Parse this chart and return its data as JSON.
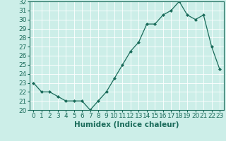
{
  "title": "",
  "xlabel": "Humidex (Indice chaleur)",
  "ylabel": "",
  "x_values": [
    0,
    1,
    2,
    3,
    4,
    5,
    6,
    7,
    8,
    9,
    10,
    11,
    12,
    13,
    14,
    15,
    16,
    17,
    18,
    19,
    20,
    21,
    22,
    23
  ],
  "y_values": [
    23.0,
    22.0,
    22.0,
    21.5,
    21.0,
    21.0,
    21.0,
    20.0,
    21.0,
    22.0,
    23.5,
    25.0,
    26.5,
    27.5,
    29.5,
    29.5,
    30.5,
    31.0,
    32.0,
    30.5,
    30.0,
    30.5,
    27.0,
    24.5
  ],
  "ylim": [
    20,
    32
  ],
  "xlim": [
    -0.5,
    23.5
  ],
  "yticks": [
    20,
    21,
    22,
    23,
    24,
    25,
    26,
    27,
    28,
    29,
    30,
    31,
    32
  ],
  "xticks": [
    0,
    1,
    2,
    3,
    4,
    5,
    6,
    7,
    8,
    9,
    10,
    11,
    12,
    13,
    14,
    15,
    16,
    17,
    18,
    19,
    20,
    21,
    22,
    23
  ],
  "line_color": "#1a6b5a",
  "marker": "D",
  "marker_size": 2.0,
  "bg_color": "#cceee8",
  "grid_color": "#aaddcc",
  "tick_label_fontsize": 6.5,
  "xlabel_fontsize": 7.5,
  "text_color": "#1a6b5a"
}
